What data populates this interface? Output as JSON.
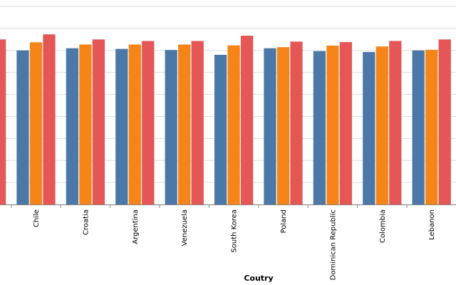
{
  "chart_data": {
    "type": "bar",
    "title": "",
    "xlabel": "Coutry",
    "ylabel": "",
    "ylim": [
      0,
      9
    ],
    "grid": true,
    "legend": "none",
    "categories": [
      "Chile",
      "Croatia",
      "Argentina",
      "Venezuela",
      "South Korea",
      "Poland",
      "Dominican Republic",
      "Colombia",
      "Lebanon"
    ],
    "leading_partial_values": [
      7.5
    ],
    "series": [
      {
        "color": "#4c78a8",
        "values": [
          7.0,
          7.1,
          7.07,
          7.02,
          6.8,
          7.1,
          6.97,
          6.93,
          7.0
        ]
      },
      {
        "color": "#f58518",
        "values": [
          7.37,
          7.27,
          7.27,
          7.27,
          7.23,
          7.15,
          7.22,
          7.18,
          7.03
        ]
      },
      {
        "color": "#e45756",
        "values": [
          7.73,
          7.5,
          7.43,
          7.43,
          7.67,
          7.4,
          7.38,
          7.43,
          7.5
        ]
      }
    ],
    "colors": {
      "grid": "#dddddd",
      "axis": "#888888"
    }
  }
}
